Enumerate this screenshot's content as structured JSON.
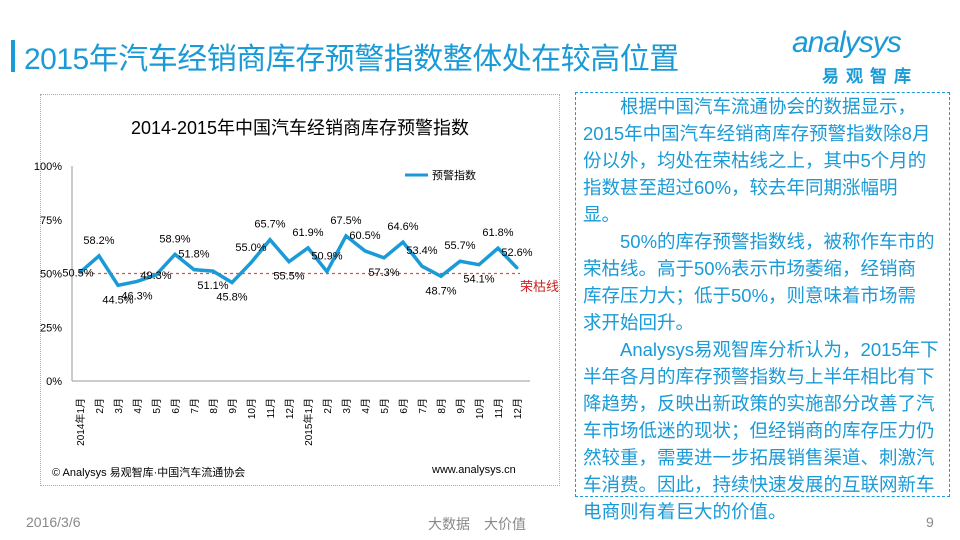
{
  "header": {
    "title": "2015年汽车经销商库存预警指数整体处在较高位置"
  },
  "logo": {
    "word": "analysys",
    "cn": "易观智库"
  },
  "chart_data": {
    "type": "line",
    "title": "2014-2015年中国汽车经销商库存预警指数",
    "categories": [
      "2014年1月",
      "2月",
      "3月",
      "4月",
      "5月",
      "6月",
      "7月",
      "8月",
      "9月",
      "10月",
      "11月",
      "12月",
      "2015年1月",
      "2月",
      "3月",
      "4月",
      "5月",
      "6月",
      "7月",
      "8月",
      "9月",
      "10月",
      "11月",
      "12月"
    ],
    "series": [
      {
        "name": "预警指数",
        "color": "#1a9ad6",
        "values": [
          50.5,
          58.2,
          44.5,
          46.3,
          49.3,
          58.9,
          51.8,
          51.1,
          45.8,
          55.0,
          65.7,
          55.5,
          61.9,
          50.9,
          67.5,
          60.5,
          57.3,
          64.6,
          53.4,
          48.7,
          55.7,
          54.1,
          61.8,
          52.6
        ]
      }
    ],
    "data_labels": [
      "50.5%",
      "58.2%",
      "44.5%",
      "46.3%",
      "49.3%",
      "58.9%",
      "51.8%",
      "51.1%",
      "45.8%",
      "55.0%",
      "65.7%",
      "55.5%",
      "61.9%",
      "50.9%",
      "67.5%",
      "60.5%",
      "57.3%",
      "64.6%",
      "53.4%",
      "48.7%",
      "55.7%",
      "54.1%",
      "61.8%",
      "52.6%"
    ],
    "yticks": [
      "0%",
      "25%",
      "50%",
      "75%",
      "100%"
    ],
    "ylim": [
      0,
      100
    ],
    "reference_line": {
      "value": 50,
      "label": "荣枯线",
      "color": "#e05050"
    },
    "legend": "top-right",
    "source": "© Analysys 易观智库·中国汽车流通协会",
    "url": "www.analysys.cn"
  },
  "text": {
    "lines": [
      "　　根据中国汽车流通协会的数据显示，",
      "2015年中国汽车经销商库存预警指数除8月",
      "份以外，均处在荣枯线之上，其中5个月的",
      "指数甚至超过60%，较去年同期涨幅明",
      "显。",
      "　　50%的库存预警指数线，被称作车市的",
      "荣枯线。高于50%表示市场萎缩，经销商",
      "库存压力大；低于50%，则意味着市场需",
      "求开始回升。",
      "　　Analysys易观智库分析认为，2015年下",
      "半年各月的库存预警指数与上半年相比有下",
      "降趋势，反映出新政策的实施部分改善了汽",
      "车市场低迷的现状；但经销商的库存压力仍",
      "然较重，需要进一步拓展销售渠道、刺激汽",
      "车消费。因此，持续快速发展的互联网新车",
      "电商则有着巨大的价值。"
    ]
  },
  "footer": {
    "date": "2016/3/6",
    "slogan": "大数据　大价值",
    "page": "9"
  }
}
